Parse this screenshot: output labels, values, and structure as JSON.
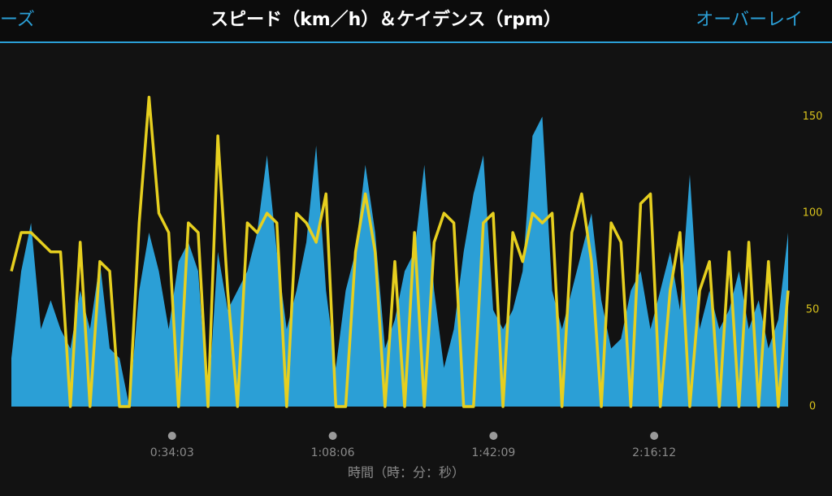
{
  "nav": {
    "back": "ーズ",
    "action": "オーバーレイ"
  },
  "chart_data": {
    "type": "area-line",
    "title": "スピード（km／h）＆ケイデンス（rpm）",
    "xlabel": "時間（時：分：秒）",
    "x": [
      0,
      125,
      250,
      375,
      500,
      625,
      750,
      875,
      1000,
      1125,
      1250,
      1375,
      1500,
      1625,
      1750,
      1875,
      2000,
      2125,
      2250,
      2375,
      2500,
      2625,
      2750,
      2875,
      3000,
      3125,
      3250,
      3375,
      3500,
      3625,
      3750,
      3875,
      4000,
      4125,
      4250,
      4375,
      4500,
      4625,
      4750,
      4875,
      5000,
      5125,
      5250,
      5375,
      5500,
      5625,
      5750,
      5875,
      6000,
      6125,
      6250,
      6375,
      6500,
      6625,
      6750,
      6875,
      7000,
      7125,
      7250,
      7375,
      7500,
      7625,
      7750,
      7875,
      8000,
      8125,
      8250,
      8375,
      8500,
      8625,
      8750,
      8875,
      9000,
      9125,
      9250,
      9375,
      9500,
      9625,
      9750,
      9875
    ],
    "series": [
      {
        "name": "スピード",
        "kind": "area",
        "color": "#2b9fd6",
        "values": [
          25,
          70,
          95,
          40,
          55,
          40,
          30,
          60,
          40,
          75,
          30,
          25,
          0,
          60,
          90,
          70,
          40,
          75,
          85,
          70,
          0,
          80,
          50,
          60,
          70,
          90,
          130,
          80,
          40,
          60,
          85,
          135,
          60,
          20,
          60,
          80,
          125,
          90,
          30,
          45,
          70,
          80,
          125,
          60,
          20,
          40,
          80,
          110,
          130,
          50,
          40,
          50,
          70,
          140,
          150,
          60,
          40,
          60,
          80,
          100,
          55,
          30,
          35,
          60,
          70,
          40,
          60,
          80,
          50,
          120,
          40,
          60,
          40,
          50,
          70,
          40,
          55,
          30,
          45,
          90
        ]
      },
      {
        "name": "ケイデンス",
        "kind": "line",
        "color": "#e6cf1f",
        "values": [
          70,
          90,
          90,
          85,
          80,
          80,
          0,
          85,
          0,
          75,
          70,
          0,
          0,
          95,
          160,
          100,
          90,
          0,
          95,
          90,
          0,
          140,
          60,
          0,
          95,
          90,
          100,
          95,
          0,
          100,
          95,
          85,
          110,
          0,
          0,
          80,
          110,
          80,
          0,
          75,
          0,
          90,
          0,
          85,
          100,
          95,
          0,
          0,
          95,
          100,
          0,
          90,
          75,
          100,
          95,
          100,
          0,
          90,
          110,
          75,
          0,
          95,
          85,
          0,
          105,
          110,
          0,
          60,
          90,
          0,
          60,
          75,
          0,
          80,
          0,
          85,
          0,
          75,
          0,
          60
        ]
      }
    ],
    "xlim": [
      0,
      9875
    ],
    "xticks": [
      {
        "value": 2043,
        "label": "0:34:03"
      },
      {
        "value": 4086,
        "label": "1:08:06"
      },
      {
        "value": 6129,
        "label": "1:42:09"
      },
      {
        "value": 8172,
        "label": "2:16:12"
      }
    ],
    "ylim": [
      0,
      180
    ],
    "yticks": [
      0,
      50,
      100,
      150
    ]
  }
}
